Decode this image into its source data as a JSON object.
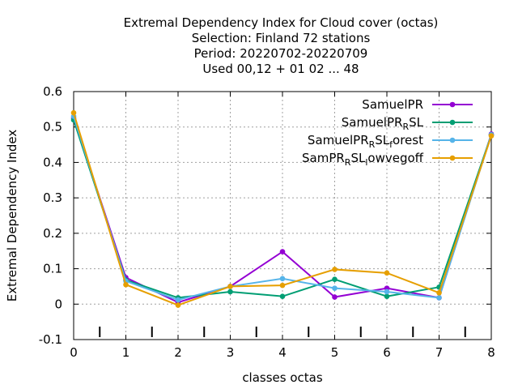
{
  "chart_data": {
    "type": "line",
    "title_lines": [
      "Extremal Dependency Index  for Cloud cover (octas)",
      "Selection: Finland     72 stations",
      "Period: 20220702-20220709",
      "Used  00,12  + 01 02 ... 48"
    ],
    "xlabel": "classes octas",
    "ylabel": "Extremal Dependency Index",
    "xlim": [
      0,
      8
    ],
    "ylim": [
      -0.1,
      0.6
    ],
    "xticks": [
      "0",
      "1",
      "2",
      "3",
      "4",
      "5",
      "6",
      "7",
      "8"
    ],
    "yticks": [
      "-0.1",
      "0",
      "0.1",
      "0.2",
      "0.3",
      "0.4",
      "0.5",
      "0.6"
    ],
    "grid": true,
    "legend_position": "top-right",
    "x": [
      0,
      1,
      2,
      3,
      4,
      5,
      6,
      7,
      8
    ],
    "series": [
      {
        "name_main": "SamuelPR",
        "name_parts": [
          [
            "SamuelPR",
            ""
          ]
        ],
        "color": "#9400d3",
        "values": [
          0.525,
          0.075,
          0.005,
          0.05,
          0.148,
          0.02,
          0.045,
          0.018,
          0.48
        ]
      },
      {
        "name_main": "SamuelPR_RSL",
        "name_parts": [
          [
            "SamuelPR",
            ""
          ],
          [
            "R",
            "sub"
          ],
          [
            "SL",
            ""
          ]
        ],
        "color": "#009e73",
        "values": [
          0.52,
          0.068,
          0.018,
          0.035,
          0.022,
          0.07,
          0.022,
          0.048,
          0.478
        ]
      },
      {
        "name_main": "SamuelPR_RSL_forest",
        "name_parts": [
          [
            "SamuelPR",
            ""
          ],
          [
            "R",
            "sub"
          ],
          [
            "SL",
            ""
          ],
          [
            "f",
            "sub"
          ],
          [
            "orest",
            ""
          ]
        ],
        "color": "#56b4e9",
        "values": [
          0.53,
          0.065,
          0.012,
          0.05,
          0.072,
          0.045,
          0.035,
          0.018,
          0.478
        ]
      },
      {
        "name_main": "SamPR_RSL_lowvegoff",
        "name_parts": [
          [
            "SamPR",
            ""
          ],
          [
            "R",
            "sub"
          ],
          [
            "SL",
            ""
          ],
          [
            "l",
            "sub"
          ],
          [
            "owvegoff",
            ""
          ]
        ],
        "color": "#e69f00",
        "values": [
          0.54,
          0.055,
          -0.003,
          0.05,
          0.053,
          0.098,
          0.088,
          0.032,
          0.475
        ]
      }
    ]
  }
}
